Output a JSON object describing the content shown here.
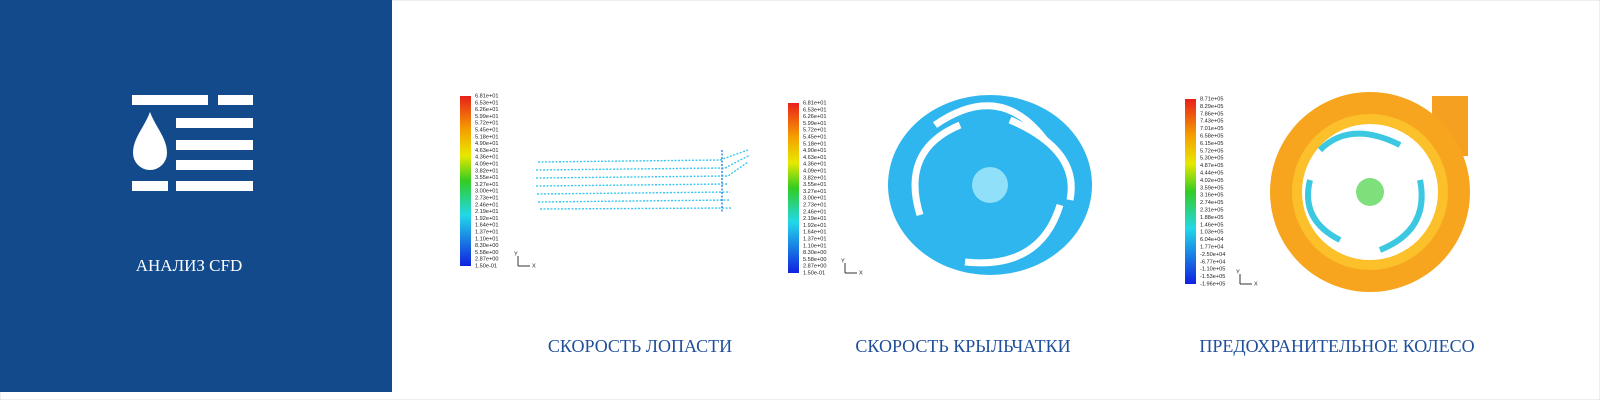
{
  "sidebar": {
    "title": "АНАЛИЗ CFD"
  },
  "panels": [
    {
      "caption": "СКОРОСТЬ ЛОПАСТИ",
      "axes": [
        "Y",
        "X"
      ],
      "legend": [
        "6.81e+01",
        "6.53e+01",
        "6.26e+01",
        "5.99e+01",
        "5.72e+01",
        "5.45e+01",
        "5.18e+01",
        "4.90e+01",
        "4.63e+01",
        "4.36e+01",
        "4.09e+01",
        "3.82e+01",
        "3.55e+01",
        "3.27e+01",
        "3.00e+01",
        "2.73e+01",
        "2.46e+01",
        "2.19e+01",
        "1.92e+01",
        "1.64e+01",
        "1.37e+01",
        "1.10e+01",
        "8.30e+00",
        "5.58e+00",
        "2.87e+00",
        "1.50e-01"
      ]
    },
    {
      "caption": "СКОРОСТЬ КРЫЛЬЧАТКИ",
      "axes": [
        "Y",
        "X"
      ],
      "legend": [
        "6.81e+01",
        "6.53e+01",
        "6.26e+01",
        "5.99e+01",
        "5.72e+01",
        "5.45e+01",
        "5.18e+01",
        "4.90e+01",
        "4.63e+01",
        "4.36e+01",
        "4.09e+01",
        "3.82e+01",
        "3.55e+01",
        "3.27e+01",
        "3.00e+01",
        "2.73e+01",
        "2.46e+01",
        "2.19e+01",
        "1.92e+01",
        "1.64e+01",
        "1.37e+01",
        "1.10e+01",
        "8.30e+00",
        "5.58e+00",
        "2.87e+00",
        "1.50e-01"
      ]
    },
    {
      "caption": "ПРЕДОХРАНИТЕЛЬНОЕ КОЛЕСО",
      "axes": [
        "Y",
        "X"
      ],
      "legend": [
        "8.71e+05",
        "8.29e+05",
        "7.86e+05",
        "7.43e+05",
        "7.01e+05",
        "6.58e+05",
        "6.15e+05",
        "5.72e+05",
        "5.30e+05",
        "4.87e+05",
        "4.44e+05",
        "4.02e+05",
        "3.59e+05",
        "3.16e+05",
        "2.74e+05",
        "2.31e+05",
        "1.88e+05",
        "1.46e+05",
        "1.03e+05",
        "6.04e+04",
        "1.77e+04",
        "-2.50e+04",
        "-6.77e+04",
        "-1.10e+05",
        "-1.53e+05",
        "-1.96e+05"
      ]
    }
  ]
}
